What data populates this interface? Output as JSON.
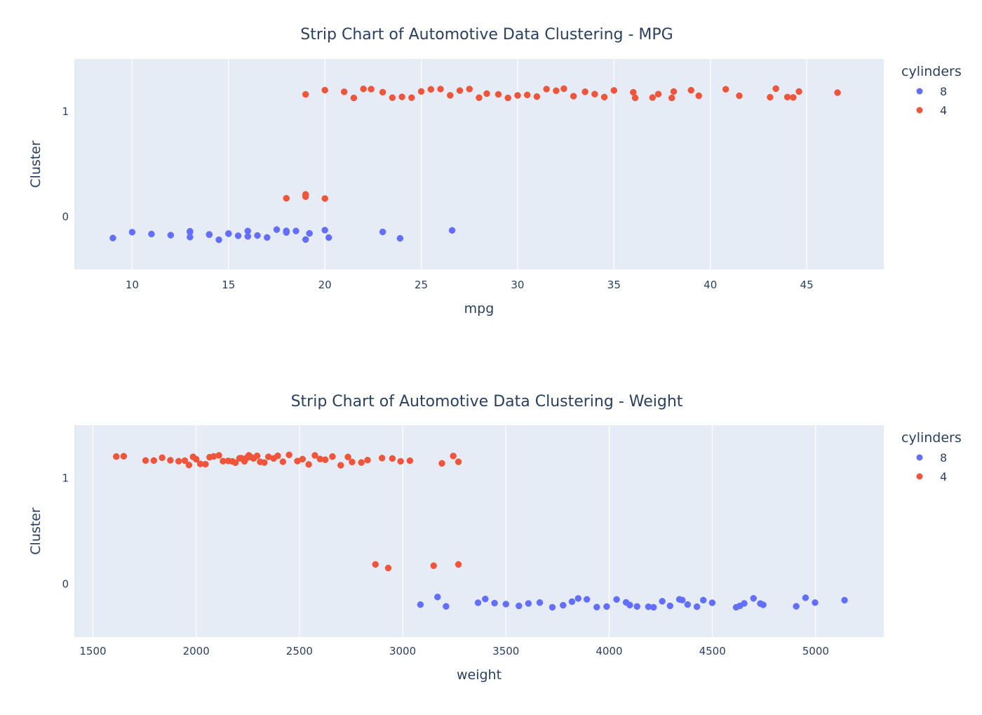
{
  "chart_data": [
    {
      "type": "scatter",
      "title": "Strip Chart of Automotive Data Clustering - MPG",
      "xlabel": "mpg",
      "ylabel": "Cluster",
      "xlim": [
        7,
        49
      ],
      "ylim": [
        -0.5,
        1.5
      ],
      "xticks": [
        10,
        15,
        20,
        25,
        30,
        35,
        40,
        45
      ],
      "yticks": [
        0,
        1
      ],
      "grid": true,
      "legend": {
        "title": "cylinders",
        "position": "top-right"
      },
      "series": [
        {
          "name": "8",
          "color": "#636efa",
          "points": [
            [
              9,
              0
            ],
            [
              10,
              0
            ],
            [
              11,
              0
            ],
            [
              12,
              0
            ],
            [
              13,
              0
            ],
            [
              13,
              0
            ],
            [
              13,
              0
            ],
            [
              14,
              0
            ],
            [
              14,
              0
            ],
            [
              14,
              0
            ],
            [
              14.5,
              0
            ],
            [
              15,
              0
            ],
            [
              15,
              0
            ],
            [
              15.5,
              0
            ],
            [
              16,
              0
            ],
            [
              16,
              0
            ],
            [
              16.5,
              0
            ],
            [
              17,
              0
            ],
            [
              17.5,
              0
            ],
            [
              18,
              0
            ],
            [
              18,
              0
            ],
            [
              18.5,
              0
            ],
            [
              19,
              0
            ],
            [
              19.2,
              0
            ],
            [
              20,
              0
            ],
            [
              20.2,
              0
            ],
            [
              23,
              0
            ],
            [
              23.9,
              0
            ],
            [
              26.6,
              0
            ]
          ]
        },
        {
          "name": "4",
          "color": "#ef553b",
          "points": [
            [
              18,
              0
            ],
            [
              19,
              0
            ],
            [
              19,
              0
            ],
            [
              20,
              0
            ],
            [
              19,
              1
            ],
            [
              20,
              1
            ],
            [
              21,
              1
            ],
            [
              21.5,
              1
            ],
            [
              22,
              1
            ],
            [
              22.4,
              1
            ],
            [
              23,
              1
            ],
            [
              23.5,
              1
            ],
            [
              24,
              1
            ],
            [
              24.5,
              1
            ],
            [
              25,
              1
            ],
            [
              25.5,
              1
            ],
            [
              26,
              1
            ],
            [
              26.5,
              1
            ],
            [
              27,
              1
            ],
            [
              27.5,
              1
            ],
            [
              28,
              1
            ],
            [
              28.4,
              1
            ],
            [
              29,
              1
            ],
            [
              29.5,
              1
            ],
            [
              30,
              1
            ],
            [
              30.5,
              1
            ],
            [
              31,
              1
            ],
            [
              31.5,
              1
            ],
            [
              32,
              1
            ],
            [
              32.4,
              1
            ],
            [
              32.9,
              1
            ],
            [
              33.5,
              1
            ],
            [
              34,
              1
            ],
            [
              34.5,
              1
            ],
            [
              35,
              1
            ],
            [
              36,
              1
            ],
            [
              36.1,
              1
            ],
            [
              37,
              1
            ],
            [
              37.3,
              1
            ],
            [
              38,
              1
            ],
            [
              38.1,
              1
            ],
            [
              39,
              1
            ],
            [
              39.4,
              1
            ],
            [
              40.8,
              1
            ],
            [
              41.5,
              1
            ],
            [
              43.1,
              1
            ],
            [
              43.4,
              1
            ],
            [
              44,
              1
            ],
            [
              44.3,
              1
            ],
            [
              44.6,
              1
            ],
            [
              46.6,
              1
            ]
          ]
        }
      ]
    },
    {
      "type": "scatter",
      "title": "Strip Chart of Automotive Data Clustering - Weight",
      "xlabel": "weight",
      "ylabel": "Cluster",
      "xlim": [
        1410,
        5330
      ],
      "ylim": [
        -0.5,
        1.5
      ],
      "xticks": [
        1500,
        2000,
        2500,
        3000,
        3500,
        4000,
        4500,
        5000
      ],
      "yticks": [
        0,
        1
      ],
      "grid": true,
      "legend": {
        "title": "cylinders",
        "position": "top-right"
      },
      "series": [
        {
          "name": "8",
          "color": "#636efa",
          "points": [
            [
              3086,
              0
            ],
            [
              3169,
              0
            ],
            [
              3210,
              0
            ],
            [
              3365,
              0
            ],
            [
              3400,
              0
            ],
            [
              3445,
              0
            ],
            [
              3500,
              0
            ],
            [
              3563,
              0
            ],
            [
              3609,
              0
            ],
            [
              3664,
              0
            ],
            [
              3725,
              0
            ],
            [
              3777,
              0
            ],
            [
              3820,
              0
            ],
            [
              3850,
              0
            ],
            [
              3892,
              0
            ],
            [
              3940,
              0
            ],
            [
              3988,
              0
            ],
            [
              4036,
              0
            ],
            [
              4082,
              0
            ],
            [
              4100,
              0
            ],
            [
              4135,
              0
            ],
            [
              4190,
              0
            ],
            [
              4215,
              0
            ],
            [
              4257,
              0
            ],
            [
              4295,
              0
            ],
            [
              4340,
              0
            ],
            [
              4354,
              0
            ],
            [
              4380,
              0
            ],
            [
              4425,
              0
            ],
            [
              4456,
              0
            ],
            [
              4499,
              0
            ],
            [
              4615,
              0
            ],
            [
              4633,
              0
            ],
            [
              4654,
              0
            ],
            [
              4699,
              0
            ],
            [
              4732,
              0
            ],
            [
              4746,
              0
            ],
            [
              4906,
              0
            ],
            [
              4951,
              0
            ],
            [
              4997,
              0
            ],
            [
              5140,
              0
            ]
          ]
        },
        {
          "name": "4",
          "color": "#ef553b",
          "points": [
            [
              2868,
              0
            ],
            [
              2930,
              0
            ],
            [
              3150,
              0
            ],
            [
              3270,
              0
            ],
            [
              1613,
              1
            ],
            [
              1649,
              1
            ],
            [
              1755,
              1
            ],
            [
              1795,
              1
            ],
            [
              1835,
              1
            ],
            [
              1875,
              1
            ],
            [
              1915,
              1
            ],
            [
              1945,
              1
            ],
            [
              1965,
              1
            ],
            [
              1985,
              1
            ],
            [
              2000,
              1
            ],
            [
              2020,
              1
            ],
            [
              2045,
              1
            ],
            [
              2065,
              1
            ],
            [
              2085,
              1
            ],
            [
              2110,
              1
            ],
            [
              2130,
              1
            ],
            [
              2155,
              1
            ],
            [
              2175,
              1
            ],
            [
              2190,
              1
            ],
            [
              2210,
              1
            ],
            [
              2220,
              1
            ],
            [
              2234,
              1
            ],
            [
              2245,
              1
            ],
            [
              2255,
              1
            ],
            [
              2265,
              1
            ],
            [
              2278,
              1
            ],
            [
              2295,
              1
            ],
            [
              2310,
              1
            ],
            [
              2330,
              1
            ],
            [
              2350,
              1
            ],
            [
              2375,
              1
            ],
            [
              2395,
              1
            ],
            [
              2420,
              1
            ],
            [
              2450,
              1
            ],
            [
              2490,
              1
            ],
            [
              2515,
              1
            ],
            [
              2545,
              1
            ],
            [
              2575,
              1
            ],
            [
              2600,
              1
            ],
            [
              2625,
              1
            ],
            [
              2660,
              1
            ],
            [
              2700,
              1
            ],
            [
              2735,
              1
            ],
            [
              2755,
              1
            ],
            [
              2800,
              1
            ],
            [
              2830,
              1
            ],
            [
              2900,
              1
            ],
            [
              2950,
              1
            ],
            [
              2990,
              1
            ],
            [
              3035,
              1
            ],
            [
              3190,
              1
            ],
            [
              3245,
              1
            ],
            [
              3270,
              1
            ]
          ]
        }
      ]
    }
  ]
}
